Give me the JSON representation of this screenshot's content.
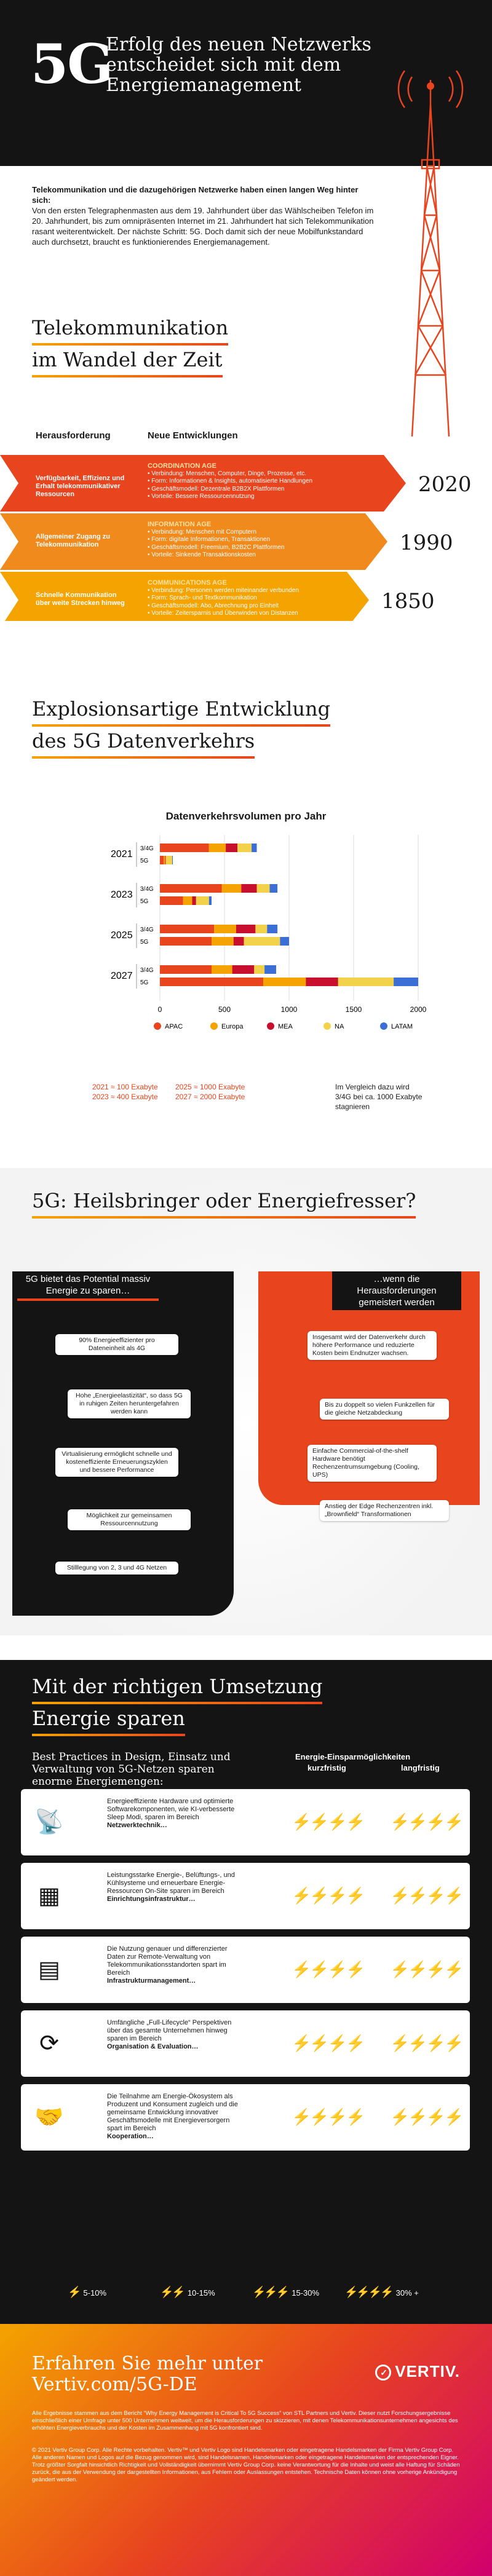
{
  "header": {
    "big": "5G",
    "title": "Erfolg des neuen Netzwerks entscheidet sich mit dem Energiemanagement"
  },
  "intro": {
    "lead": "Telekommunikation und die dazugehörigen Netzwerke haben einen langen Weg hinter sich:",
    "body": "Von den ersten Telegraphenmasten aus dem 19. Jahrhundert über das Wählscheiben Telefon im 20. Jahrhundert, bis zum omnipräsenten Internet im 21. Jahrhundert hat sich Telekommunikation rasant weiterentwickelt. Der nächste Schritt: 5G. Doch damit sich der neue Mobilfunkstandard auch durchsetzt, braucht es funktionierendes Energiemanagement."
  },
  "tele": {
    "title1": "Telekommunikation",
    "title2": "im Wandel der Zeit",
    "col1": "Herausforderung",
    "col2": "Neue Entwicklungen",
    "rows": [
      {
        "label": "Verfügbarkeit, Effizienz und Erhalt telekommunikativer Ressourcen",
        "age": "COORDINATION AGE",
        "l1": "• Verbindung: Menschen, Computer, Dinge, Prozesse, etc.",
        "l2": "• Form: Informationen & Insights, automatisierte Handlungen",
        "l3": "• Geschäftsmodell: Dezentrale B2B2X Plattformen",
        "l4": "• Vorteile: Bessere Ressourcennutzung",
        "year": "2020",
        "color": "#e8451e"
      },
      {
        "label": "Allgemeiner Zugang zu Telekommunikation",
        "age": "INFORMATION AGE",
        "l1": "• Verbindung: Menschen mit Computern",
        "l2": "• Form: digitale Informationen, Transaktionen",
        "l3": "• Geschäftsmodell: Freemium, B2B2C Plattformen",
        "l4": "• Vorteile: Sinkende Transaktionskosten",
        "year": "1990",
        "color": "#f08a1c"
      },
      {
        "label": "Schnelle Kommunikation über weite Strecken hinweg",
        "age": "COMMUNICATIONS AGE",
        "l1": "• Verbindung: Personen werden miteinander verbunden",
        "l2": "• Form: Sprach- und Textkommunikation",
        "l3": "• Geschäftsmodell: Abo, Abrechnung pro Einheit",
        "l4": "• Vorteile: Zeitersparnis und Überwinden von Distanzen",
        "year": "1850",
        "color": "#f4a300"
      }
    ]
  },
  "chart_section": {
    "title1": "Explosionsartige Entwicklung",
    "title2": "des 5G Datenverkehrs",
    "legend_note1_a": "2021 ≈ 100  Exabyte",
    "legend_note1_b": "2023 ≈ 400  Exabyte",
    "legend_note2_a": "2025 ≈ 1000 Exabyte",
    "legend_note2_b": "2027 ≈ 2000 Exabyte",
    "legend_note3": "Im Vergleich dazu wird 3/4G bei ca. 1000 Exabyte stagnieren"
  },
  "chart_data": {
    "type": "bar",
    "orientation": "horizontal",
    "stacked": true,
    "title": "Datenverkehrsvolumen pro Jahr",
    "groups": [
      "2021",
      "2023",
      "2025",
      "2027"
    ],
    "rows": [
      "3/4G",
      "5G"
    ],
    "xlim": [
      0,
      2000
    ],
    "xticks": [
      0,
      500,
      1000,
      1500,
      2000
    ],
    "series": [
      {
        "name": "APAC",
        "color": "#e8451e",
        "values": [
          [
            380,
            30
          ],
          [
            480,
            180
          ],
          [
            420,
            400
          ],
          [
            400,
            800
          ]
        ]
      },
      {
        "name": "Europa",
        "color": "#f4a300",
        "values": [
          [
            130,
            10
          ],
          [
            150,
            70
          ],
          [
            170,
            170
          ],
          [
            160,
            330
          ]
        ]
      },
      {
        "name": "MEA",
        "color": "#c8102e",
        "values": [
          [
            90,
            5
          ],
          [
            120,
            30
          ],
          [
            150,
            80
          ],
          [
            170,
            250
          ]
        ]
      },
      {
        "name": "NA",
        "color": "#f2d14b",
        "values": [
          [
            110,
            50
          ],
          [
            100,
            100
          ],
          [
            90,
            280
          ],
          [
            80,
            430
          ]
        ]
      },
      {
        "name": "LATAM",
        "color": "#3b6fd6",
        "values": [
          [
            40,
            5
          ],
          [
            60,
            20
          ],
          [
            80,
            70
          ],
          [
            90,
            190
          ]
        ]
      }
    ]
  },
  "energy": {
    "title": "5G: Heilsbringer oder Energiefresser?",
    "left_tag": "5G bietet das Potential massiv Energie zu sparen…",
    "right_tag": "…wenn die Herausforderungen gemeistert werden",
    "left": [
      "90% Energieeffizienter pro Dateneinheit als 4G",
      "Hohe „Energieelastizität“, so dass 5G in ruhigen Zeiten heruntergefahren werden kann",
      "Virtualisierung ermöglicht schnelle und kosteneffiziente Erneuerungszyklen und bessere Performance",
      "Möglichkeit zur gemeinsamen Ressourcennutzung",
      "Stilllegung von 2, 3 und 4G Netzen"
    ],
    "right": [
      "Insgesamt wird der Datenverkehr durch höhere Performance und reduzierte Kosten beim Endnutzer wachsen.",
      "Bis zu doppelt so vielen Funkzellen für die gleiche Netzabdeckung",
      "Einfache Commercial-of-the-shelf Hardware benötigt Rechenzentrumsumgebung (Cooling, UPS)",
      "Anstieg der Edge Rechenzentren inkl. „Brownfield“ Transformationen"
    ]
  },
  "bp": {
    "title1": "Mit der richtigen Umsetzung",
    "title2": "Energie sparen",
    "subtitle": "Best Practices in Design, Einsatz und Verwaltung von 5G-Netzen sparen enorme Energiemengen:",
    "col_head": "Energie-Einsparmöglichkeiten",
    "col_short": "kurzfristig",
    "col_long": "langfristig",
    "rows": [
      {
        "text": "Energieeffiziente Hardware und optimierte Softwarekomponenten, wie KI-verbesserte Sleep Modi, sparen im Bereich",
        "bold": "Netzwerktechnik…",
        "icon": "tower-icon",
        "short": 3,
        "long": 4
      },
      {
        "text": "Leistungsstarke Energie-, Belüftungs-, und Kühlsysteme und erneuerbare Energie-Ressourcen On-Site sparen im Bereich",
        "bold": "Einrichtungsinfrastruktur…",
        "icon": "solar-panel-icon",
        "short": 3,
        "long": 4
      },
      {
        "text": "Die Nutzung genauer und differenzierter Daten zur Remote-Verwaltung von Telekommunikationsstandorten spart im Bereich",
        "bold": "Infrastrukturmanagement…",
        "icon": "document-icon",
        "short": 2,
        "long": 3
      },
      {
        "text": "Umfängliche „Full-Lifecycle“ Perspektiven über das gesamte Unternehmen hinweg sparen im Bereich",
        "bold": "Organisation & Evaluation…",
        "icon": "cycle-icon",
        "short": 1,
        "long": 2
      },
      {
        "text": "Die Teilnahme am Energie-Ökosystem als Produzent und Konsument zugleich und die gemeinsame Entwicklung innovativer Geschäftsmodelle mit Energieversorgern spart im Bereich",
        "bold": "Kooperation…",
        "icon": "handshake-icon",
        "short": 1,
        "long": 3
      }
    ],
    "scale": [
      "5-10%",
      "10-15%",
      "15-30%",
      "30% +"
    ]
  },
  "footer": {
    "title1": "Erfahren Sie mehr unter",
    "title2": "Vertiv.com/5G-DE",
    "logo": "VERTIV.",
    "note1": "Alle Ergebnisse stammen aus dem Bericht “Why Energy Management is Critical To 5G Success” von STL Partners und Vertiv. Dieser nutzt Forschungsergebnisse einschließlich einer Umfrage unter 500 Unternehmen weltweit, um die Herausforderungen zu skizzieren, mit denen Telekommunikationsunternehmen angesichts des erhöhten Energieverbrauchs und der Kosten im Zusammenhang mit 5G konfrontiert sind.",
    "note2": "© 2021 Vertiv Group Corp. Alle Rechte vorbehalten. Vertiv™ und Vertiv Logo sind Handelsmarken oder eingetragene Handelsmarken der Firma Vertiv Group Corp. Alle anderen Namen und Logos auf die Bezug genommen wird, sind Handelsnamen, Handelsmarken oder eingetragene Handelsmarken der entsprechenden Eigner. Trotz größter Sorgfalt hinsichtlich Richtigkeit und Vollständigkeit übernimmt Vertiv Group Corp. keine Verantwortung für die Inhalte und weist alle Haftung für Schäden zurück, die aus der Verwendung der dargestellten Informationen, aus Fehlern oder Auslassungen entstehen. Technische Daten können ohne vorherige Ankündigung geändert werden."
  },
  "colors": {
    "orange": "#e8451e",
    "amber": "#f4a300",
    "dark": "#141414"
  }
}
